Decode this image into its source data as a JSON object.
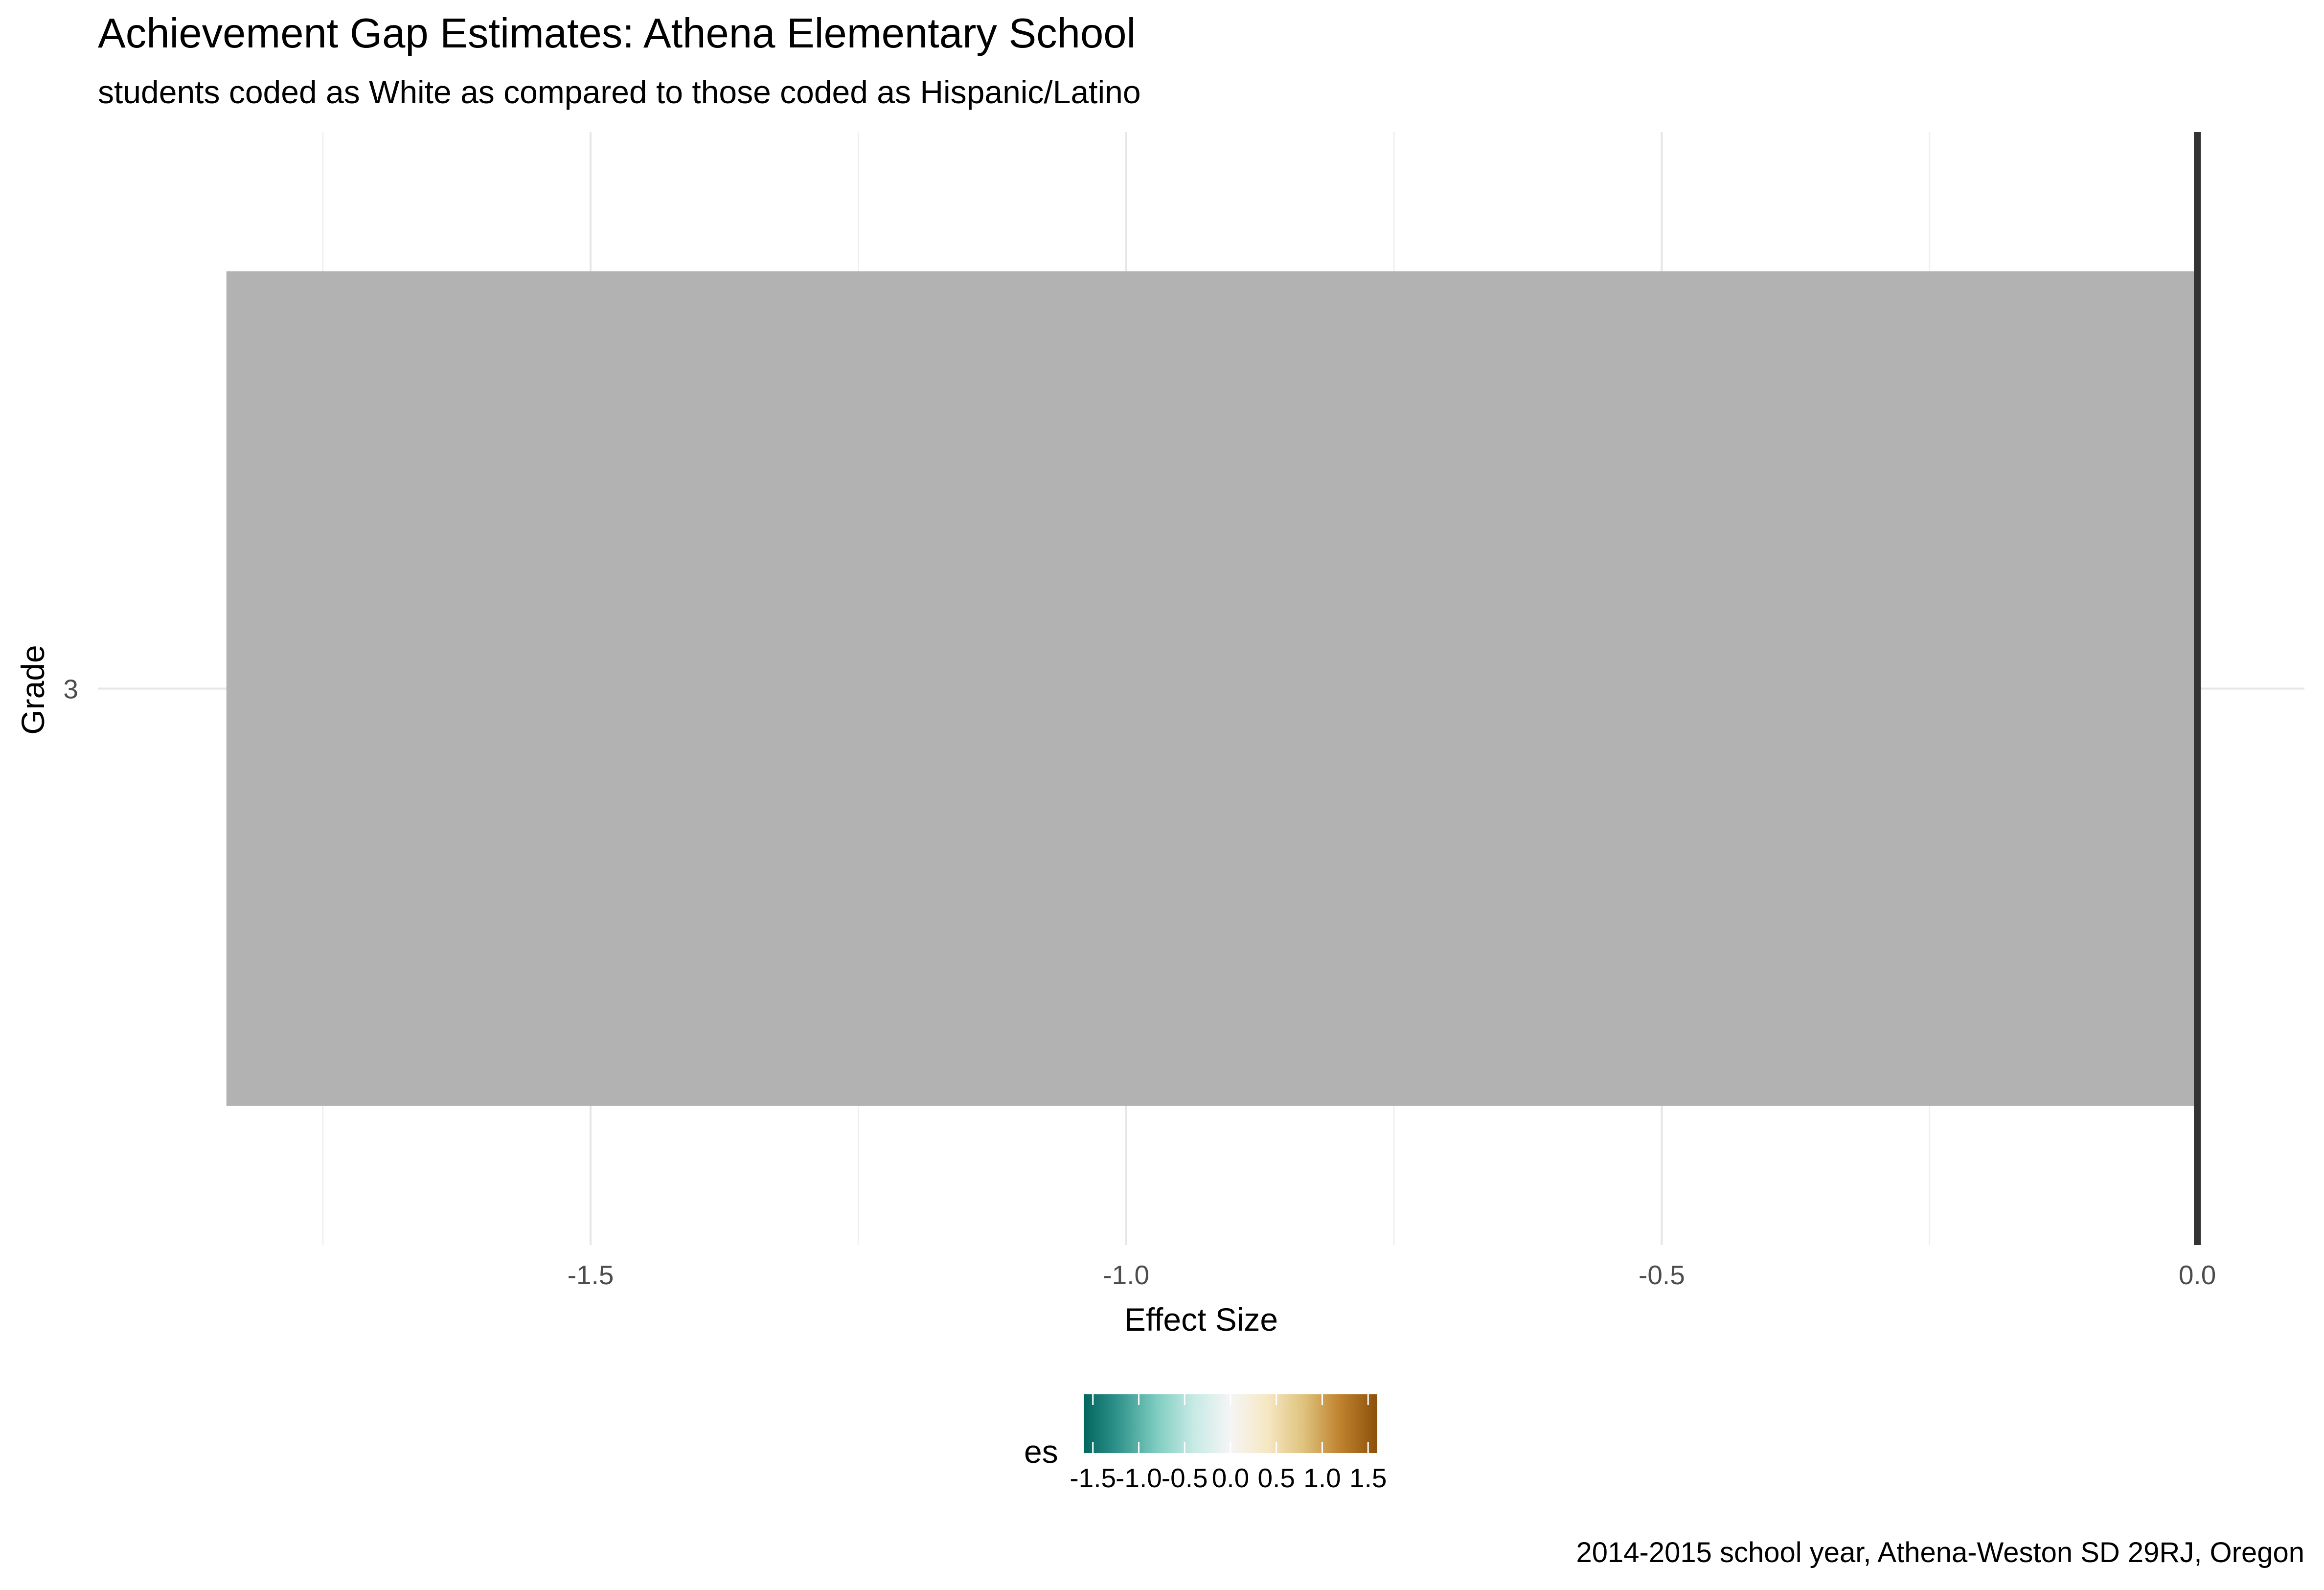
{
  "chart_data": {
    "type": "bar",
    "orientation": "horizontal",
    "title": "Achievement Gap Estimates: Athena Elementary School",
    "subtitle": "students coded as White as compared to those coded as Hispanic/Latino",
    "caption": "2014-2015 school year, Athena-Weston SD 29RJ, Oregon",
    "xlabel": "Effect Size",
    "ylabel": "Grade",
    "categories": [
      "3"
    ],
    "values": [
      -1.84
    ],
    "xlim": [
      -1.96,
      0.1
    ],
    "x_ticks": [
      -1.5,
      -1.0,
      -0.5,
      0.0
    ],
    "x_tick_labels": [
      "-1.5",
      "-1.0",
      "-0.5",
      "0.0"
    ],
    "reference_line": 0.0,
    "grid": true,
    "bar_color": "#b2b2b2",
    "legend": {
      "title": "es",
      "position": "bottom",
      "type": "colorbar",
      "limits": [
        -1.6,
        1.6
      ],
      "tick_values": [
        -1.5,
        -1.0,
        -0.5,
        0.0,
        0.5,
        1.0,
        1.5
      ],
      "tick_labels": [
        "-1.5",
        "-1.0",
        "-0.5",
        "0.0",
        "0.5",
        "1.0",
        "1.5"
      ],
      "colors": [
        "#01665e",
        "#35978f",
        "#80cdc1",
        "#c7eae5",
        "#f5f5f5",
        "#f6e8c3",
        "#dfc27d",
        "#bf812d",
        "#8c510a"
      ]
    }
  }
}
